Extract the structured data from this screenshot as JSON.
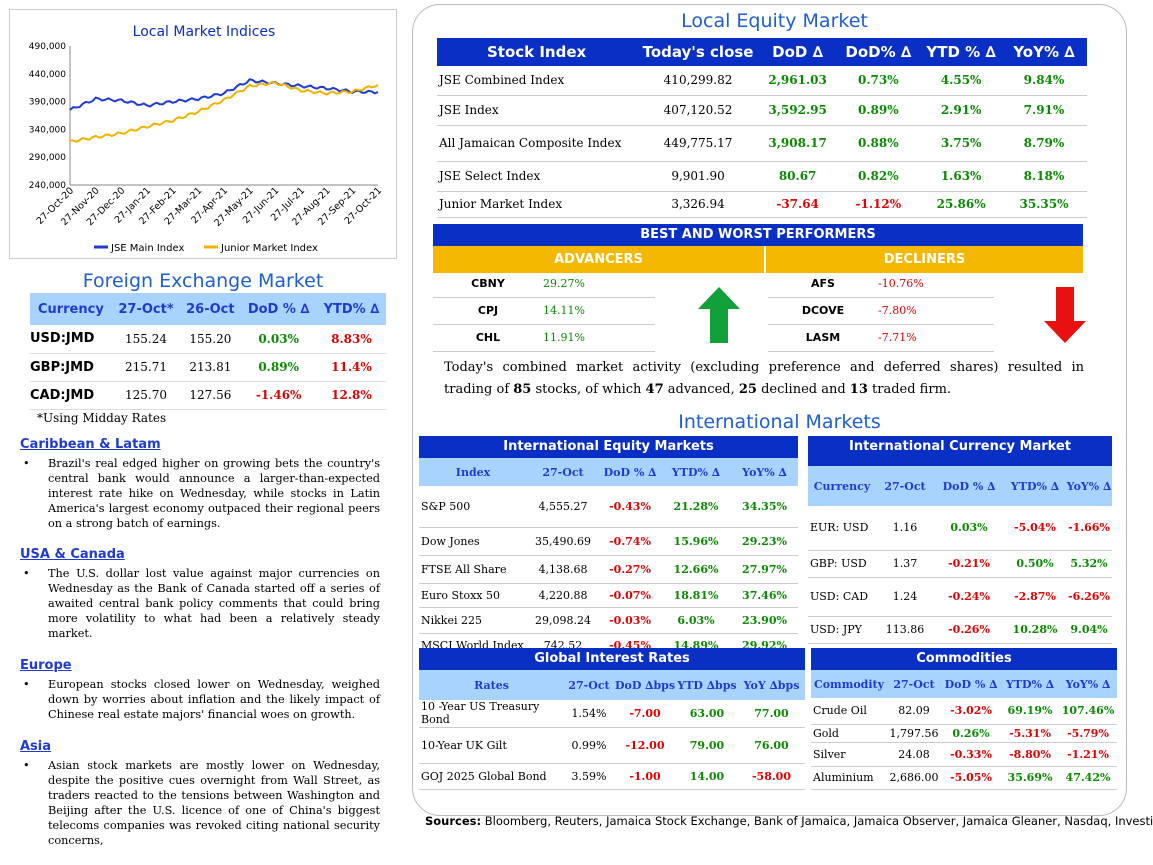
{
  "chart": {
    "title": "Local Market Indices",
    "y_ticks": [
      "490,000",
      "440,000",
      "390,000",
      "340,000",
      "290,000",
      "240,000"
    ],
    "x_ticks": [
      "27-Oct-20",
      "27-Nov-20",
      "27-Dec-20",
      "27-Jan-21",
      "27-Feb-21",
      "27-Mar-21",
      "27-Apr-21",
      "27-May-21",
      "27-Jun-21",
      "27-Jul-21",
      "27-Aug-21",
      "27-Sep-21",
      "27-Oct-21"
    ],
    "legend": [
      "JSE Main Index",
      "Junior Market Index"
    ]
  },
  "chart_data": {
    "type": "line",
    "title": "Local Market Indices",
    "ylim": [
      240000,
      490000
    ],
    "x": [
      "27-Oct-20",
      "27-Nov-20",
      "27-Dec-20",
      "27-Jan-21",
      "27-Feb-21",
      "27-Mar-21",
      "27-Apr-21",
      "27-May-21",
      "27-Jun-21",
      "27-Jul-21",
      "27-Aug-21",
      "27-Sep-21",
      "27-Oct-21"
    ],
    "series": [
      {
        "name": "JSE Main Index",
        "color": "#1f3bd0",
        "values": [
          375000,
          395000,
          392000,
          383000,
          390000,
          395000,
          405000,
          428000,
          423000,
          418000,
          414000,
          408000,
          407000
        ]
      },
      {
        "name": "Junior Market Index",
        "color": "#f0b400",
        "values": [
          318000,
          326000,
          333000,
          345000,
          356000,
          372000,
          393000,
          418000,
          424000,
          410000,
          405000,
          408000,
          420000
        ]
      }
    ]
  },
  "fx": {
    "title": "Foreign Exchange Market",
    "headers": [
      "Currency",
      "27-Oct*",
      "26-Oct",
      "DoD % ∆",
      "YTD% ∆"
    ],
    "rows": [
      {
        "cur": "USD:JMD",
        "a": "155.24",
        "b": "155.20",
        "dod": "0.03%",
        "ytd": "8.83%"
      },
      {
        "cur": "GBP:JMD",
        "a": "215.71",
        "b": "213.81",
        "dod": "0.89%",
        "ytd": "11.4%"
      },
      {
        "cur": "CAD:JMD",
        "a": "125.70",
        "b": "127.56",
        "dod": "-1.46%",
        "ytd": "12.8%"
      }
    ],
    "note": "*Using Midday Rates"
  },
  "news": [
    {
      "head": "Caribbean & Latam",
      "body": "Brazil's real edged higher on growing bets the country's central bank would announce a larger-than-expected interest rate hike on Wednesday, while stocks in Latin America's largest economy outpaced their regional peers on a strong batch of earnings."
    },
    {
      "head": "USA & Canada",
      "body": "The U.S. dollar lost value against major currencies on Wednesday as the Bank of Canada started off a series of awaited central bank policy comments that could bring more volatility to what had been a relatively steady market."
    },
    {
      "head": "Europe",
      "body": "European stocks closed lower on Wednesday, weighed down by worries about inflation and the likely impact of Chinese real estate majors' financial woes on growth."
    },
    {
      "head": "Asia",
      "body": "Asian stock markets are mostly lower on Wednesday, despite the positive cues overnight from Wall Street, as traders reacted to the tensions between Washington and Beijing after the U.S. licence of one of China's biggest telecoms companies was revoked citing national security concerns,"
    }
  ],
  "equity": {
    "title": "Local Equity Market",
    "headers": [
      "Stock Index",
      "Today's close",
      "DoD  ∆",
      "DoD% ∆",
      "YTD % ∆",
      "YoY% ∆"
    ],
    "rows": [
      {
        "n": "JSE Combined Index",
        "c": "410,299.82",
        "d": "2,961.03",
        "dp": "0.73%",
        "y": "4.55%",
        "yy": "9.84%"
      },
      {
        "n": "JSE Index",
        "c": "407,120.52",
        "d": "3,592.95",
        "dp": "0.89%",
        "y": "2.91%",
        "yy": "7.91%"
      },
      {
        "n": "All Jamaican Composite Index",
        "c": "449,775.17",
        "d": "3,908.17",
        "dp": "0.88%",
        "y": "3.75%",
        "yy": "8.79%"
      },
      {
        "n": "JSE Select Index",
        "c": "9,901.90",
        "d": "80.67",
        "dp": "0.82%",
        "y": "1.63%",
        "yy": "8.18%"
      },
      {
        "n": "Junior Market Index",
        "c": "3,326.94",
        "d": "-37.64",
        "dp": "-1.12%",
        "y": "25.86%",
        "yy": "35.35%"
      }
    ]
  },
  "performers": {
    "title": "BEST AND WORST PERFORMERS",
    "adv_label": "ADVANCERS",
    "dec_label": "DECLINERS",
    "advancers": [
      {
        "s": "CBNY",
        "v": "29.27%"
      },
      {
        "s": "CPJ",
        "v": "14.11%"
      },
      {
        "s": "CHL",
        "v": "11.91%"
      }
    ],
    "decliners": [
      {
        "s": "AFS",
        "v": "-10.76%"
      },
      {
        "s": "DCOVE",
        "v": "-7.80%"
      },
      {
        "s": "LASM",
        "v": "-7.71%"
      }
    ]
  },
  "summary": {
    "pre": "Today's combined market activity (excluding preference and deferred shares) resulted in trading of ",
    "total": "85",
    "mid1": " stocks, of which ",
    "adv": "47",
    "mid2": " advanced, ",
    "dec": "25",
    "mid3": " declined and ",
    "firm": "13",
    "post": " traded firm."
  },
  "intl": {
    "title": "International Markets",
    "eq": {
      "title": "International Equity Markets",
      "headers": [
        "Index",
        "27-Oct",
        "DoD % ∆",
        "YTD% ∆",
        "YoY% ∆"
      ],
      "rows": [
        {
          "n": "S&P 500",
          "a": "4,555.27",
          "d": "-0.43%",
          "y": "21.28%",
          "yy": "34.35%"
        },
        {
          "n": "Dow Jones",
          "a": "35,490.69",
          "d": "-0.74%",
          "y": "15.96%",
          "yy": "29.23%"
        },
        {
          "n": "FTSE All Share",
          "a": "4,138.68",
          "d": "-0.27%",
          "y": "12.66%",
          "yy": "27.97%"
        },
        {
          "n": "Euro Stoxx 50",
          "a": "4,220.88",
          "d": "-0.07%",
          "y": "18.81%",
          "yy": "37.46%"
        },
        {
          "n": "Nikkei 225",
          "a": "29,098.24",
          "d": "-0.03%",
          "y": "6.03%",
          "yy": "23.90%"
        },
        {
          "n": "MSCI World Index",
          "a": "742.52",
          "d": "-0.45%",
          "y": "14.89%",
          "yy": "29.92%"
        }
      ]
    },
    "cur": {
      "title": "International Currency Market",
      "headers": [
        "Currency",
        "27-Oct",
        "DoD % ∆",
        "YTD% ∆",
        "YoY% ∆"
      ],
      "rows": [
        {
          "n": "EUR: USD",
          "a": "1.16",
          "d": "0.03%",
          "y": "-5.04%",
          "yy": "-1.66%"
        },
        {
          "n": "GBP: USD",
          "a": "1.37",
          "d": "-0.21%",
          "y": "0.50%",
          "yy": "5.32%"
        },
        {
          "n": "USD: CAD",
          "a": "1.24",
          "d": "-0.24%",
          "y": "-2.87%",
          "yy": "-6.26%"
        },
        {
          "n": "USD: JPY",
          "a": "113.86",
          "d": "-0.26%",
          "y": "10.28%",
          "yy": "9.04%"
        }
      ]
    },
    "rates": {
      "title": "Global Interest Rates",
      "headers": [
        "Rates",
        "27-Oct",
        "DoD ∆bps",
        "YTD ∆bps",
        "YoY ∆bps"
      ],
      "rows": [
        {
          "n": "10 -Year US Treasury Bond",
          "a": "1.54%",
          "d": "-7.00",
          "y": "63.00",
          "yy": "77.00"
        },
        {
          "n": "10-Year UK Gilt",
          "a": "0.99%",
          "d": "-12.00",
          "y": "79.00",
          "yy": "76.00"
        },
        {
          "n": "GOJ 2025 Global Bond",
          "a": "3.59%",
          "d": "-1.00",
          "y": "14.00",
          "yy": "-58.00"
        }
      ]
    },
    "com": {
      "title": "Commodities",
      "headers": [
        "Commodity",
        "27-Oct",
        "DoD % ∆",
        "YTD% ∆",
        "YoY% ∆"
      ],
      "rows": [
        {
          "n": "Crude Oil",
          "a": "82.09",
          "d": "-3.02%",
          "y": "69.19%",
          "yy": "107.46%"
        },
        {
          "n": "Gold",
          "a": "1,797.56",
          "d": "0.26%",
          "y": "-5.31%",
          "yy": "-5.79%"
        },
        {
          "n": "Silver",
          "a": "24.08",
          "d": "-0.33%",
          "y": "-8.80%",
          "yy": "-1.21%"
        },
        {
          "n": "Aluminium",
          "a": "2,686.00",
          "d": "-5.05%",
          "y": "35.69%",
          "yy": "47.42%"
        }
      ]
    }
  },
  "sources": {
    "label": "Sources:",
    "text": " Bloomberg, Reuters, Jamaica Stock Exchange, Bank of Jamaica, Jamaica Observer, Jamaica Gleaner, Nasdaq, Investing.com"
  }
}
